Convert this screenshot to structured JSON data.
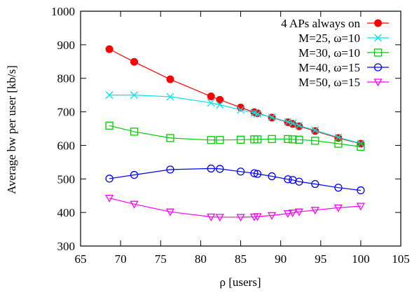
{
  "chart_data": {
    "type": "line",
    "xlabel": "ρ [users]",
    "ylabel": "Average bw per user [kb/s]",
    "xlim": [
      65,
      105
    ],
    "ylim": [
      300,
      1000
    ],
    "xticks": [
      65,
      70,
      75,
      80,
      85,
      90,
      95,
      100,
      105
    ],
    "yticks": [
      300,
      400,
      500,
      600,
      700,
      800,
      900,
      1000
    ],
    "grid": false,
    "legend_position": "top-right",
    "series": [
      {
        "name": "4 APs always on",
        "color": "#ff0000",
        "marker": "filled-circle",
        "x": [
          68.6,
          71.7,
          76.2,
          81.3,
          82.4,
          85.0,
          86.7,
          87.1,
          88.9,
          90.9,
          91.5,
          92.3,
          94.3,
          97.2,
          100.0
        ],
        "y": [
          887,
          849,
          797,
          746,
          736,
          713,
          699,
          696,
          683,
          669,
          664,
          657,
          643,
          622,
          605
        ]
      },
      {
        "name": "M=25, ω=10",
        "color": "#00e5ee",
        "marker": "x",
        "x": [
          68.6,
          71.7,
          76.2,
          81.3,
          82.4,
          85.0,
          86.7,
          87.1,
          88.9,
          90.9,
          91.5,
          92.3,
          94.3,
          97.2,
          100.0
        ],
        "y": [
          750,
          750,
          745,
          727,
          721,
          706,
          697,
          694,
          684,
          670,
          666,
          659,
          645,
          624,
          606
        ]
      },
      {
        "name": "M=30, ω=10",
        "color": "#00cc00",
        "marker": "open-square",
        "x": [
          68.6,
          71.7,
          76.2,
          81.3,
          82.4,
          85.0,
          86.7,
          87.1,
          88.9,
          90.9,
          91.5,
          92.3,
          94.3,
          97.2,
          100.0
        ],
        "y": [
          659,
          641,
          622,
          616,
          616,
          617,
          618,
          618,
          619,
          619,
          618,
          617,
          614,
          605,
          596
        ]
      },
      {
        "name": "M=40, ω=15",
        "color": "#0000ff",
        "marker": "open-circle",
        "x": [
          68.6,
          71.7,
          76.2,
          81.3,
          82.4,
          85.0,
          86.7,
          87.1,
          88.9,
          90.9,
          91.5,
          92.3,
          94.3,
          97.2,
          100.0
        ],
        "y": [
          501,
          512,
          528,
          531,
          530,
          522,
          517,
          515,
          508,
          499,
          497,
          492,
          485,
          474,
          466
        ]
      },
      {
        "name": "M=50, ω=15",
        "color": "#ff00ff",
        "marker": "open-triangle-down",
        "x": [
          68.6,
          71.7,
          76.2,
          81.3,
          82.4,
          85.0,
          86.7,
          87.1,
          88.9,
          90.9,
          91.5,
          92.3,
          94.3,
          97.2,
          100.0
        ],
        "y": [
          443,
          425,
          402,
          387,
          386,
          386,
          387,
          388,
          391,
          397,
          399,
          402,
          407,
          414,
          419
        ]
      }
    ]
  }
}
